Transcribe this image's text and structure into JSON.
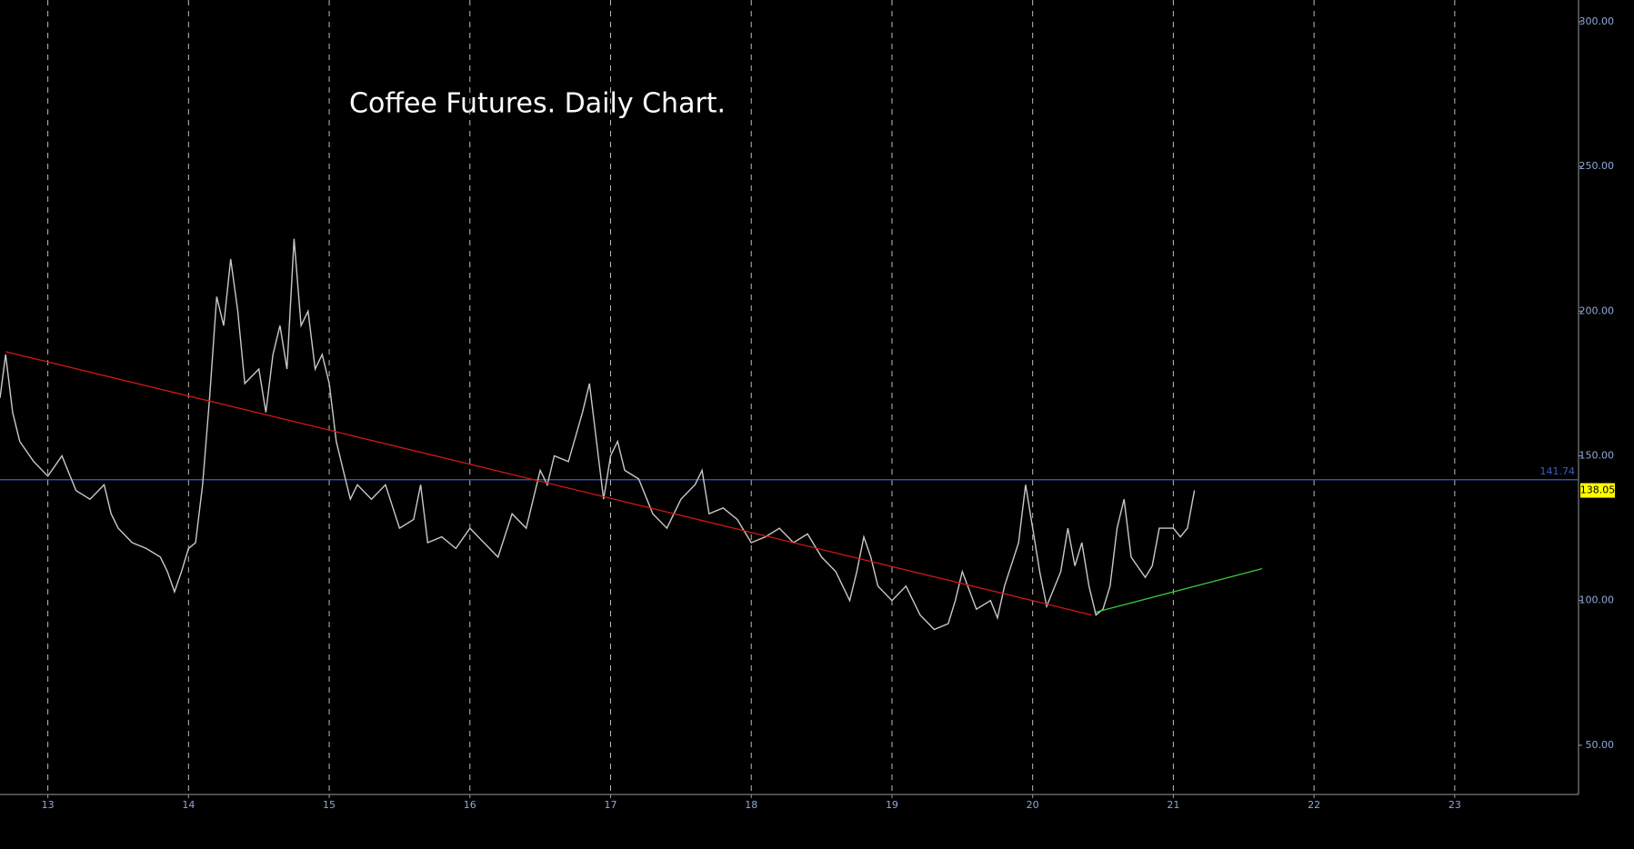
{
  "chart_data": {
    "type": "line",
    "title": "Coffee Futures.  Daily Chart.",
    "x": [
      12.66,
      12.7,
      12.75,
      12.8,
      12.9,
      13.0,
      13.1,
      13.2,
      13.3,
      13.4,
      13.45,
      13.5,
      13.6,
      13.7,
      13.8,
      13.85,
      13.9,
      13.95,
      14.0,
      14.05,
      14.1,
      14.15,
      14.2,
      14.25,
      14.3,
      14.35,
      14.4,
      14.5,
      14.55,
      14.6,
      14.65,
      14.7,
      14.75,
      14.8,
      14.85,
      14.9,
      14.95,
      15.0,
      15.05,
      15.1,
      15.15,
      15.2,
      15.3,
      15.4,
      15.5,
      15.6,
      15.65,
      15.7,
      15.8,
      15.9,
      16.0,
      16.1,
      16.2,
      16.3,
      16.4,
      16.5,
      16.55,
      16.6,
      16.7,
      16.8,
      16.85,
      16.9,
      16.95,
      17.0,
      17.05,
      17.1,
      17.2,
      17.3,
      17.4,
      17.5,
      17.6,
      17.65,
      17.7,
      17.8,
      17.9,
      18.0,
      18.1,
      18.2,
      18.3,
      18.4,
      18.5,
      18.6,
      18.7,
      18.75,
      18.8,
      18.85,
      18.9,
      19.0,
      19.1,
      19.2,
      19.3,
      19.4,
      19.45,
      19.5,
      19.6,
      19.7,
      19.75,
      19.8,
      19.9,
      19.95,
      20.0,
      20.05,
      20.1,
      20.2,
      20.25,
      20.3,
      20.35,
      20.4,
      20.45,
      20.5,
      20.55,
      20.6,
      20.65,
      20.7,
      20.8,
      20.85,
      20.9,
      21.0,
      21.05,
      21.1,
      21.15
    ],
    "series": [
      {
        "color": "#c8c8c8",
        "values": [
          170,
          185,
          165,
          155,
          148,
          143,
          150,
          138,
          135,
          140,
          130,
          125,
          120,
          118,
          115,
          110,
          103,
          110,
          118,
          120,
          140,
          170,
          205,
          195,
          218,
          200,
          175,
          180,
          165,
          185,
          195,
          180,
          225,
          195,
          200,
          180,
          185,
          175,
          155,
          145,
          135,
          140,
          135,
          140,
          125,
          128,
          140,
          120,
          122,
          118,
          125,
          120,
          115,
          130,
          125,
          145,
          140,
          150,
          148,
          165,
          175,
          155,
          135,
          150,
          155,
          145,
          142,
          130,
          125,
          135,
          140,
          145,
          130,
          132,
          128,
          120,
          122,
          125,
          120,
          123,
          115,
          110,
          100,
          110,
          122,
          115,
          105,
          100,
          105,
          95,
          90,
          92,
          100,
          110,
          97,
          100,
          94,
          105,
          120,
          140,
          125,
          110,
          98,
          110,
          125,
          112,
          120,
          105,
          95,
          97,
          105,
          125,
          135,
          115,
          108,
          112,
          125,
          125,
          122,
          125,
          138.05
        ]
      }
    ],
    "trendlines": [
      {
        "color": "#d01818",
        "x": [
          12.7,
          20.42
        ],
        "values": [
          186,
          95
        ]
      },
      {
        "color": "#3cc83c",
        "x": [
          20.45,
          21.63
        ],
        "values": [
          96,
          111
        ]
      }
    ],
    "reference_line": {
      "value": 141.74,
      "color": "#3a5ec8"
    },
    "xlim": [
      12.66,
      23.88
    ],
    "ylim": [
      33,
      307.5
    ],
    "xticks": [
      13,
      14,
      15,
      16,
      17,
      18,
      19,
      20,
      21,
      22,
      23
    ],
    "yticks": [
      {
        "value": 50,
        "label": "50.00"
      },
      {
        "value": 100,
        "label": "100.00"
      },
      {
        "value": 150,
        "label": "150.00"
      },
      {
        "value": 200,
        "label": "200.00"
      },
      {
        "value": 250,
        "label": "250.00"
      },
      {
        "value": 300,
        "label": "300.00"
      }
    ],
    "grid": true
  }
}
